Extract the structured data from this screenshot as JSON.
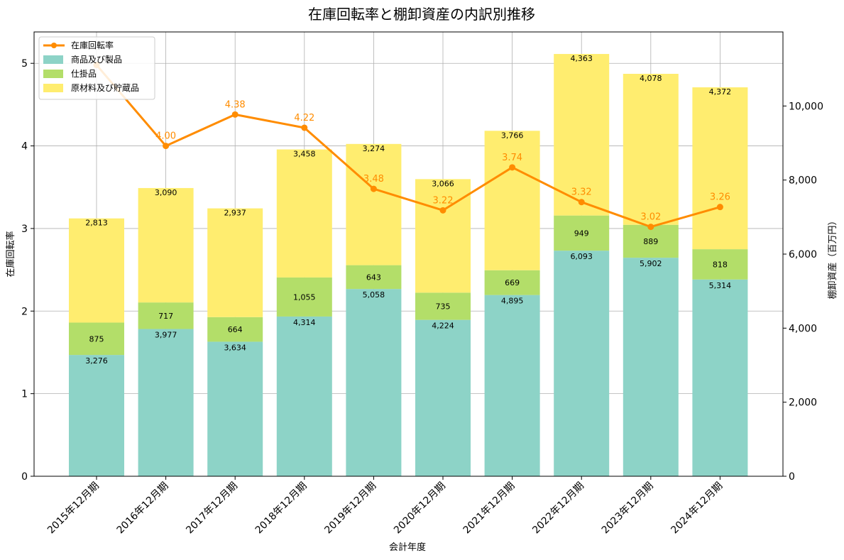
{
  "chart_data": {
    "type": "bar",
    "title": "在庫回転率と棚卸資産の内訳別推移",
    "xlabel": "会計年度",
    "ylabel_left": "在庫回転率",
    "ylabel_right": "棚卸資産（百万円）",
    "categories": [
      "2015年12月期",
      "2016年12月期",
      "2017年12月期",
      "2018年12月期",
      "2019年12月期",
      "2020年12月期",
      "2021年12月期",
      "2022年12月期",
      "2023年12月期",
      "2024年12月期"
    ],
    "stacked_series": [
      {
        "name": "商品及び製品",
        "color": "#8dd3c7",
        "values": [
          3276,
          3977,
          3634,
          4314,
          5058,
          4224,
          4895,
          6093,
          5902,
          5314
        ]
      },
      {
        "name": "仕掛品",
        "color": "#b3de69",
        "values": [
          875,
          717,
          664,
          1055,
          643,
          735,
          669,
          949,
          889,
          818
        ]
      },
      {
        "name": "原材料及び貯蔵品",
        "color": "#ffed6f",
        "values": [
          2813,
          3090,
          2937,
          3458,
          3274,
          3066,
          3766,
          4363,
          4078,
          4372
        ]
      }
    ],
    "value_labels": [
      [
        "3,276",
        "3,977",
        "3,634",
        "4,314",
        "5,058",
        "4,224",
        "4,895",
        "6,093",
        "5,902",
        "5,314"
      ],
      [
        "875",
        "717",
        "664",
        "1,055",
        "643",
        "735",
        "669",
        "949",
        "889",
        "818"
      ],
      [
        "2,813",
        "3,090",
        "2,937",
        "3,458",
        "3,274",
        "3,066",
        "3,766",
        "4,363",
        "4,078",
        "4,372"
      ]
    ],
    "line_series": {
      "name": "在庫回転率",
      "color": "#ff8c00",
      "values": [
        4.98,
        4.0,
        4.38,
        4.22,
        3.48,
        3.22,
        3.74,
        3.32,
        3.02,
        3.26
      ],
      "labels": [
        "",
        "4.00",
        "4.38",
        "4.22",
        "3.48",
        "3.22",
        "3.74",
        "3.32",
        "3.02",
        "3.26"
      ]
    },
    "y_left": {
      "lim": [
        0,
        5.38
      ],
      "ticks": [
        0,
        1,
        2,
        3,
        4,
        5
      ],
      "tick_labels": [
        "0",
        "1",
        "2",
        "3",
        "4",
        "5"
      ]
    },
    "y_right": {
      "lim": [
        0,
        12000
      ],
      "ticks": [
        0,
        2000,
        4000,
        6000,
        8000,
        10000
      ],
      "tick_labels": [
        "0",
        "2,000",
        "4,000",
        "6,000",
        "8,000",
        "10,000"
      ]
    },
    "grid": true,
    "legend_position": "top-left"
  }
}
